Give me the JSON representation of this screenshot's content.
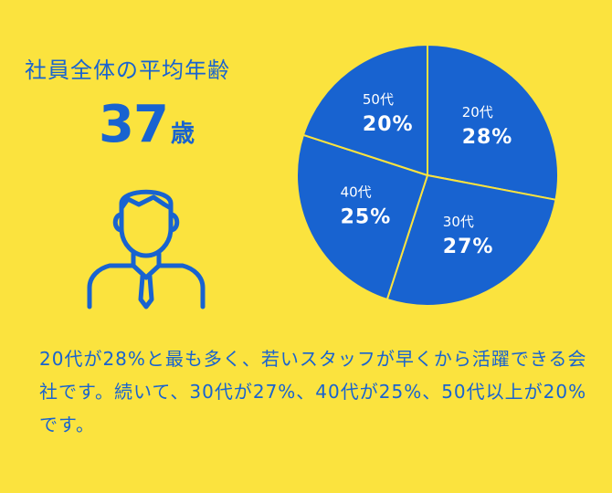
{
  "heading": "社員全体の平均年齢",
  "average": {
    "value": "37",
    "unit": "歳"
  },
  "description": "20代が28%と最も多く、若いスタッフが早くから活躍できる会社です。続いて、30代が27%、40代が25%、50代以上が20%です。",
  "colors": {
    "background": "#FBE33E",
    "accent": "#1863D0",
    "divider": "#FBE33E"
  },
  "chart_data": {
    "type": "pie",
    "title": "",
    "slices": [
      {
        "category": "20代",
        "value": 28,
        "label": "28%"
      },
      {
        "category": "30代",
        "value": 27,
        "label": "27%"
      },
      {
        "category": "40代",
        "value": 25,
        "label": "25%"
      },
      {
        "category": "50代",
        "value": 20,
        "label": "20%"
      }
    ],
    "start": "top",
    "direction": "clockwise"
  }
}
